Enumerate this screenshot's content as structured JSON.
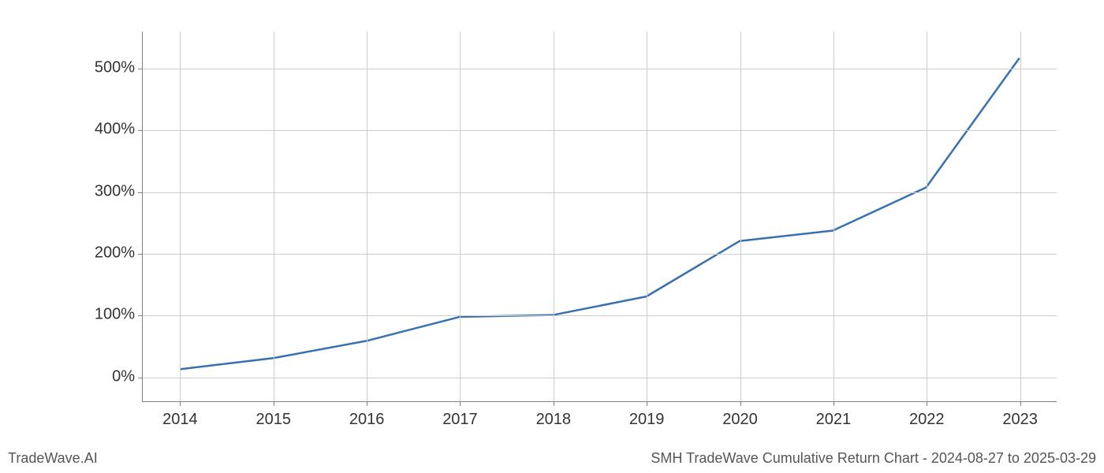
{
  "chart": {
    "type": "line",
    "x_categories": [
      "2014",
      "2015",
      "2016",
      "2017",
      "2018",
      "2019",
      "2020",
      "2021",
      "2022",
      "2023"
    ],
    "y_values": [
      12,
      30,
      58,
      97,
      100,
      130,
      220,
      237,
      307,
      517
    ],
    "line_color": "#3771b0",
    "line_width": 2.5,
    "background_color": "#ffffff",
    "grid_color": "#cccccc",
    "axis_color": "#808080",
    "y_ticks": [
      0,
      100,
      200,
      300,
      400,
      500
    ],
    "y_tick_labels": [
      "0%",
      "100%",
      "200%",
      "300%",
      "400%",
      "500%"
    ],
    "y_min": -40,
    "y_max": 560,
    "x_min_index": -0.4,
    "x_max_index": 9.4,
    "tick_label_fontsize": 20,
    "tick_label_color": "#333333"
  },
  "footer": {
    "left": "TradeWave.AI",
    "right": "SMH TradeWave Cumulative Return Chart - 2024-08-27 to 2025-03-29",
    "fontsize": 18,
    "color": "#555555"
  }
}
